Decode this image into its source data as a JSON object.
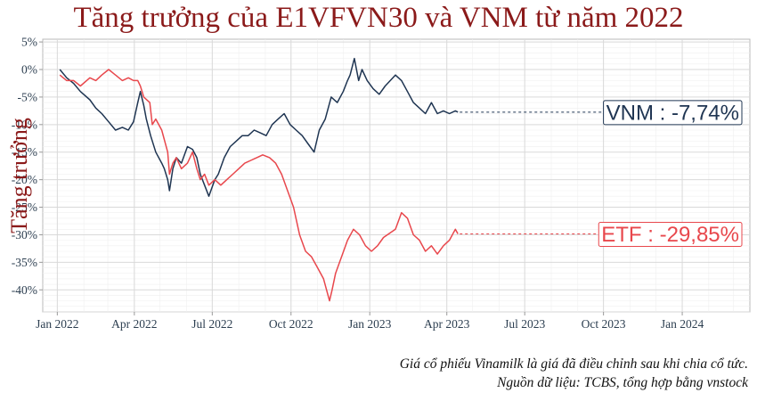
{
  "chart_data": {
    "type": "line",
    "title": "Tăng trưởng của E1VFVN30 và VNM từ năm 2022",
    "ylabel": "Tăng trưởng",
    "xlabel": "",
    "x_ticks": [
      "Jan 2022",
      "Apr 2022",
      "Jul 2022",
      "Oct 2022",
      "Jan 2023",
      "Apr 2023",
      "Jul 2023",
      "Oct 2023",
      "Jan 2024"
    ],
    "x_range": [
      "2021-12-15",
      "2024-03-20"
    ],
    "y_ticks": [
      "5%",
      "0%",
      "-5%",
      "-10%",
      "-15%",
      "-20%",
      "-25%",
      "-30%",
      "-35%",
      "-40%"
    ],
    "ylim": [
      -44,
      5.5
    ],
    "grid": true,
    "series": [
      {
        "name": "VNM",
        "color": "#1f3552",
        "callout": "VNM : -7,74%",
        "final_value": -7.74,
        "points": [
          [
            "2022-01-04",
            0
          ],
          [
            "2022-01-12",
            -1.5
          ],
          [
            "2022-01-20",
            -2.5
          ],
          [
            "2022-01-28",
            -4
          ],
          [
            "2022-02-08",
            -5.5
          ],
          [
            "2022-02-15",
            -7
          ],
          [
            "2022-02-22",
            -8
          ],
          [
            "2022-03-02",
            -9.5
          ],
          [
            "2022-03-10",
            -11
          ],
          [
            "2022-03-18",
            -10.5
          ],
          [
            "2022-03-25",
            -11
          ],
          [
            "2022-03-31",
            -9.5
          ],
          [
            "2022-04-05",
            -6
          ],
          [
            "2022-04-08",
            -4
          ],
          [
            "2022-04-12",
            -6.5
          ],
          [
            "2022-04-15",
            -9
          ],
          [
            "2022-04-20",
            -12
          ],
          [
            "2022-04-26",
            -15
          ],
          [
            "2022-05-03",
            -17
          ],
          [
            "2022-05-06",
            -18
          ],
          [
            "2022-05-10",
            -20
          ],
          [
            "2022-05-12",
            -22
          ],
          [
            "2022-05-16",
            -18
          ],
          [
            "2022-05-20",
            -16
          ],
          [
            "2022-05-26",
            -17
          ],
          [
            "2022-06-02",
            -14
          ],
          [
            "2022-06-08",
            -14.5
          ],
          [
            "2022-06-13",
            -16
          ],
          [
            "2022-06-17",
            -19
          ],
          [
            "2022-06-22",
            -21
          ],
          [
            "2022-06-27",
            -23
          ],
          [
            "2022-07-04",
            -20
          ],
          [
            "2022-07-08",
            -19
          ],
          [
            "2022-07-15",
            -16
          ],
          [
            "2022-07-22",
            -14
          ],
          [
            "2022-07-29",
            -13
          ],
          [
            "2022-08-05",
            -12
          ],
          [
            "2022-08-12",
            -12
          ],
          [
            "2022-08-19",
            -11
          ],
          [
            "2022-08-26",
            -11.5
          ],
          [
            "2022-09-02",
            -12
          ],
          [
            "2022-09-09",
            -10
          ],
          [
            "2022-09-16",
            -9
          ],
          [
            "2022-09-23",
            -8
          ],
          [
            "2022-09-30",
            -10
          ],
          [
            "2022-10-07",
            -11
          ],
          [
            "2022-10-14",
            -12
          ],
          [
            "2022-10-21",
            -13.5
          ],
          [
            "2022-10-28",
            -15
          ],
          [
            "2022-11-03",
            -11
          ],
          [
            "2022-11-10",
            -9
          ],
          [
            "2022-11-17",
            -5
          ],
          [
            "2022-11-24",
            -6
          ],
          [
            "2022-12-01",
            -4
          ],
          [
            "2022-12-06",
            -2
          ],
          [
            "2022-12-09",
            -1
          ],
          [
            "2022-12-14",
            2
          ],
          [
            "2022-12-19",
            -2
          ],
          [
            "2022-12-23",
            0
          ],
          [
            "2022-12-29",
            -2
          ],
          [
            "2023-01-05",
            -3.5
          ],
          [
            "2023-01-12",
            -4.5
          ],
          [
            "2023-01-19",
            -3
          ],
          [
            "2023-01-31",
            -1
          ],
          [
            "2023-02-07",
            -2
          ],
          [
            "2023-02-14",
            -4
          ],
          [
            "2023-02-21",
            -6
          ],
          [
            "2023-02-28",
            -7
          ],
          [
            "2023-03-07",
            -8
          ],
          [
            "2023-03-14",
            -6
          ],
          [
            "2023-03-21",
            -8
          ],
          [
            "2023-03-28",
            -7.5
          ],
          [
            "2023-04-04",
            -8
          ],
          [
            "2023-04-11",
            -7.5
          ],
          [
            "2023-04-14",
            -7.74
          ]
        ]
      },
      {
        "name": "ETF",
        "color": "#e8474c",
        "callout": "ETF : -29,85%",
        "final_value": -29.85,
        "points": [
          [
            "2022-01-04",
            -1
          ],
          [
            "2022-01-12",
            -2
          ],
          [
            "2022-01-20",
            -2
          ],
          [
            "2022-01-28",
            -3
          ],
          [
            "2022-02-08",
            -1.5
          ],
          [
            "2022-02-15",
            -2
          ],
          [
            "2022-02-22",
            -1
          ],
          [
            "2022-03-02",
            0
          ],
          [
            "2022-03-10",
            -1
          ],
          [
            "2022-03-18",
            -2
          ],
          [
            "2022-03-25",
            -1.5
          ],
          [
            "2022-03-31",
            -2
          ],
          [
            "2022-04-05",
            -2
          ],
          [
            "2022-04-08",
            -3
          ],
          [
            "2022-04-12",
            -5
          ],
          [
            "2022-04-19",
            -6
          ],
          [
            "2022-04-22",
            -10
          ],
          [
            "2022-04-26",
            -9
          ],
          [
            "2022-05-03",
            -11
          ],
          [
            "2022-05-10",
            -15
          ],
          [
            "2022-05-12",
            -19
          ],
          [
            "2022-05-16",
            -17
          ],
          [
            "2022-05-20",
            -16
          ],
          [
            "2022-05-26",
            -18
          ],
          [
            "2022-06-02",
            -17
          ],
          [
            "2022-06-08",
            -15
          ],
          [
            "2022-06-13",
            -18
          ],
          [
            "2022-06-17",
            -20
          ],
          [
            "2022-06-22",
            -19
          ],
          [
            "2022-06-27",
            -21
          ],
          [
            "2022-07-04",
            -20
          ],
          [
            "2022-07-11",
            -21
          ],
          [
            "2022-07-18",
            -20
          ],
          [
            "2022-07-25",
            -19
          ],
          [
            "2022-08-01",
            -18
          ],
          [
            "2022-08-08",
            -17
          ],
          [
            "2022-08-15",
            -16.5
          ],
          [
            "2022-08-22",
            -16
          ],
          [
            "2022-08-29",
            -15.5
          ],
          [
            "2022-09-06",
            -16
          ],
          [
            "2022-09-13",
            -17
          ],
          [
            "2022-09-20",
            -19
          ],
          [
            "2022-09-27",
            -22
          ],
          [
            "2022-10-04",
            -25
          ],
          [
            "2022-10-11",
            -30
          ],
          [
            "2022-10-18",
            -33
          ],
          [
            "2022-10-25",
            -34
          ],
          [
            "2022-11-01",
            -36
          ],
          [
            "2022-11-08",
            -38
          ],
          [
            "2022-11-15",
            -42
          ],
          [
            "2022-11-18",
            -40
          ],
          [
            "2022-11-22",
            -37
          ],
          [
            "2022-11-29",
            -34
          ],
          [
            "2022-12-06",
            -31
          ],
          [
            "2022-12-13",
            -29
          ],
          [
            "2022-12-20",
            -30
          ],
          [
            "2022-12-27",
            -32
          ],
          [
            "2023-01-03",
            -33
          ],
          [
            "2023-01-10",
            -32
          ],
          [
            "2023-01-17",
            -30.5
          ],
          [
            "2023-01-31",
            -29
          ],
          [
            "2023-02-07",
            -26
          ],
          [
            "2023-02-14",
            -27
          ],
          [
            "2023-02-21",
            -30
          ],
          [
            "2023-02-28",
            -31
          ],
          [
            "2023-03-07",
            -33
          ],
          [
            "2023-03-14",
            -32
          ],
          [
            "2023-03-21",
            -33.5
          ],
          [
            "2023-03-28",
            -32
          ],
          [
            "2023-04-04",
            -31
          ],
          [
            "2023-04-11",
            -29
          ],
          [
            "2023-04-14",
            -29.85
          ]
        ]
      }
    ]
  },
  "notes": [
    "Giá cổ phiếu Vinamilk là giá đã điều chỉnh sau khi chia cổ tức.",
    "Nguồn dữ liệu: TCBS, tổng hợp bằng vnstock"
  ]
}
